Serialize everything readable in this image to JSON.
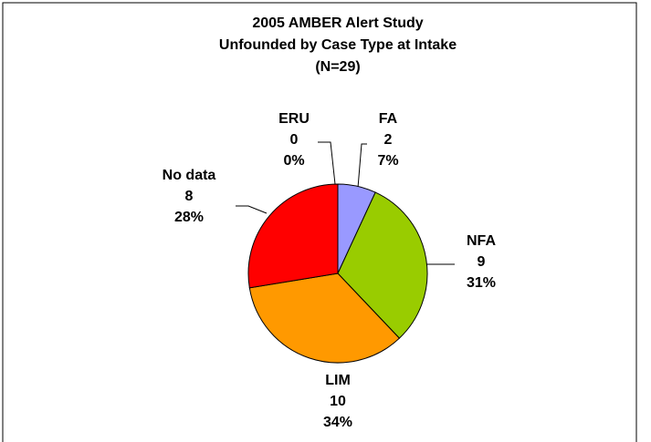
{
  "chart_data": {
    "type": "pie",
    "title": [
      "2005 AMBER Alert Study",
      "Unfounded by Case Type at Intake",
      "(N=29)"
    ],
    "categories": [
      "FA",
      "NFA",
      "LIM",
      "No data",
      "ERU"
    ],
    "values": [
      2,
      9,
      10,
      8,
      0
    ],
    "percent_labels": [
      "7%",
      "31%",
      "34%",
      "28%",
      "0%"
    ],
    "colors": [
      "#9999ff",
      "#99cc00",
      "#ff9900",
      "#ff0000",
      "#3366ff"
    ]
  }
}
